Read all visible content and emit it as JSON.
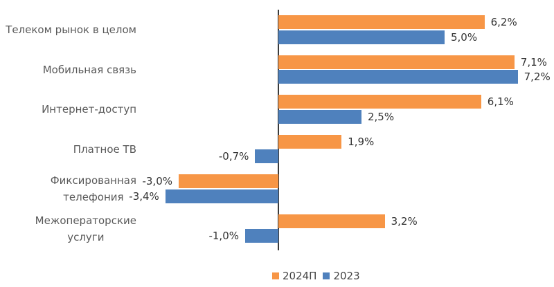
{
  "chart_data": {
    "type": "bar",
    "orientation": "horizontal",
    "title": "",
    "unit": "%",
    "grid": false,
    "zero_axis_line": true,
    "legend_position": "bottom-center",
    "xlim": [
      -4,
      8
    ],
    "categories": [
      "Телеком рынок в целом",
      "Мобильная связь",
      "Интернет-доступ",
      "Платное ТВ",
      "Фиксированная\nтелефония",
      "Межоператорские\nуслуги"
    ],
    "series": [
      {
        "name": "2024П",
        "color": "#F79646",
        "values": [
          6.2,
          7.1,
          6.1,
          1.9,
          -3.0,
          3.2
        ],
        "value_labels": [
          "6,2%",
          "7,1%",
          "6,1%",
          "1,9%",
          "-3,0%",
          "3,2%"
        ]
      },
      {
        "name": "2023",
        "color": "#4F81BD",
        "values": [
          5.0,
          7.2,
          2.5,
          -0.7,
          -3.4,
          -1.0
        ],
        "value_labels": [
          "5,0%",
          "7,2%",
          "2,5%",
          "-0,7%",
          "-3,4%",
          "-1,0%"
        ]
      }
    ]
  }
}
